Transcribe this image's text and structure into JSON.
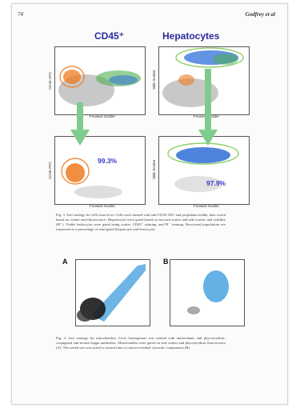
{
  "header": {
    "page_number": "74",
    "author": "Godfrey et al"
  },
  "figure3": {
    "col1_title": "CD45⁺",
    "col2_title": "Hepatocytes",
    "pct_cd45": "99.3%",
    "pct_hep": "97.9%",
    "x_label": "Forward Scatter",
    "y_label_cd45": "CD45-APC",
    "y_label_hep": "Side Scatter",
    "caption": "Fig. 3. Sort strategy for cells from liver. Cells were stained with anti-CD45-APC and propidium iodide, then sorted based on scatter and fluorescence. Hepatocytes were gated based on forward scatter and side scatter, and viability (PI⁻). Viable leukocytes were gated using scatter, CD45⁺ staining, and PI⁻ staining. Recovered populations are expressed as a percentage of total gated (hepatocyte and leucocyte)."
  },
  "figure4": {
    "label_a": "A",
    "label_b": "B",
    "caption": "Fig. 4. Sort strategy for mitochondria. Liver homogenate was stained with antioxidants and phycoerythrin-conjugated anti-mouse kappa antibodies. Mitochondria were gated on side scatter and phycoerythrin fluorescence (A). The sorted sort was sorted a second time to remove residual cytosolic components (B)."
  },
  "colors": {
    "title_blue": "#2a2a9c",
    "cd45_orange": "#f07a20",
    "hep_blue": "#2f6fd8",
    "gate_green": "#8fcf6a",
    "arrow_green": "#7ecc8c"
  }
}
